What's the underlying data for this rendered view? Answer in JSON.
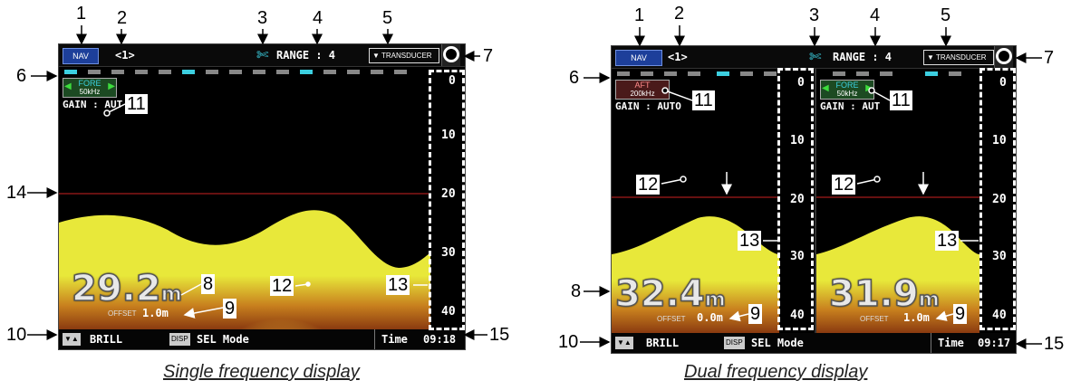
{
  "callouts": {
    "n1": "1",
    "n2": "2",
    "n3": "3",
    "n4": "4",
    "n5": "5",
    "n6": "6",
    "n7": "7",
    "n8": "8",
    "n9": "9",
    "n10": "10",
    "n11": "11",
    "n12": "12",
    "n13": "13",
    "n14": "14",
    "n15": "15"
  },
  "single": {
    "caption": "Single frequency display",
    "nav_label": "NAV",
    "page_label": "<1>",
    "range_label": "RANGE : 4",
    "transducer_label": "TRANSDUCER",
    "freq_name": "FORE",
    "freq_value": "50kHz",
    "gain_label": "GAIN : AUT",
    "depth_value": "29.2",
    "depth_unit": "m",
    "offset_label": "OFFSET",
    "offset_value": "1.0m",
    "scale": [
      "0",
      "10",
      "20",
      "30",
      "40"
    ],
    "brill_label": "BRILL",
    "disp_key": "DISP",
    "sel_mode": "SEL Mode",
    "time_label": "Time",
    "time_value": "09:18"
  },
  "dual": {
    "caption": "Dual frequency display",
    "nav_label": "NAV",
    "page_label": "<1>",
    "range_label": "RANGE : 4",
    "transducer_label": "TRANSDUCER",
    "left": {
      "freq_name": "AFT",
      "freq_value": "200kHz",
      "gain_label": "GAIN : AUTO",
      "depth_value": "32.4",
      "depth_unit": "m",
      "offset_label": "OFFSET",
      "offset_value": "0.0m"
    },
    "right": {
      "freq_name": "FORE",
      "freq_value": "50kHz",
      "gain_label": "GAIN : AUT",
      "depth_value": "31.9",
      "depth_unit": "m",
      "offset_label": "OFFSET",
      "offset_value": "1.0m"
    },
    "scale": [
      "0",
      "10",
      "20",
      "30",
      "40"
    ],
    "brill_label": "BRILL",
    "disp_key": "DISP",
    "sel_mode": "SEL Mode",
    "time_label": "Time",
    "time_value": "09:17"
  },
  "colors": {
    "echo_yellow": "#e8e83a",
    "echo_orange": "#c8701e",
    "zero_line_red": "#cc2222",
    "nav_blue": "#1d3f9a",
    "segment_cyan": "#3ccfe0",
    "segment_gray": "#888888"
  }
}
